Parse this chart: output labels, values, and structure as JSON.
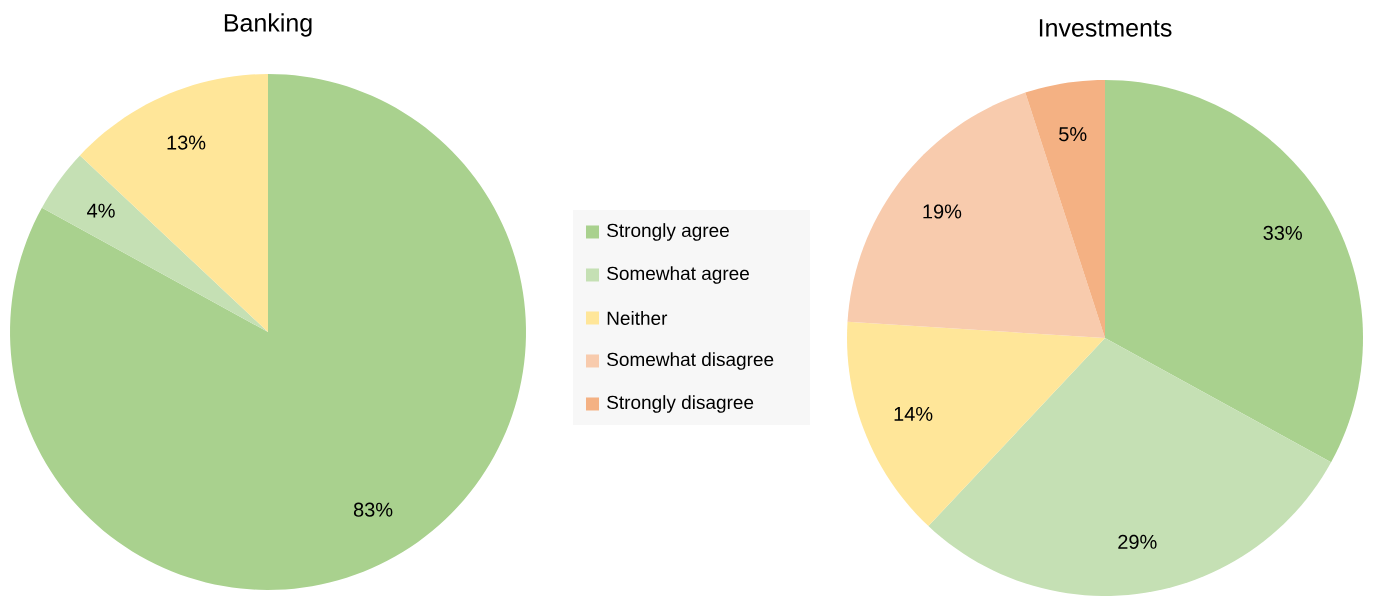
{
  "chart_data": [
    {
      "type": "pie",
      "title": "Banking",
      "categories": [
        null,
        null,
        null
      ],
      "values": [
        83,
        4,
        13
      ],
      "colors": [
        "#a9d18e",
        "#c5e0b4",
        "#ffe699"
      ],
      "value_labels": [
        "83%",
        "4%",
        "13%"
      ]
    },
    {
      "type": "pie",
      "title": "Investments",
      "categories": [
        "Strongly agree",
        "Somewhat agree",
        "Neither",
        "Somewhat disagree",
        "Strongly disagree"
      ],
      "values": [
        33,
        29,
        14,
        19,
        5
      ],
      "colors": [
        "#a9d18e",
        "#c5e0b4",
        "#ffe699",
        "#f8cbad",
        "#f4b183"
      ],
      "value_labels": [
        "33%",
        "29%",
        "14%",
        "19%",
        "5%"
      ],
      "legend": "left"
    }
  ]
}
